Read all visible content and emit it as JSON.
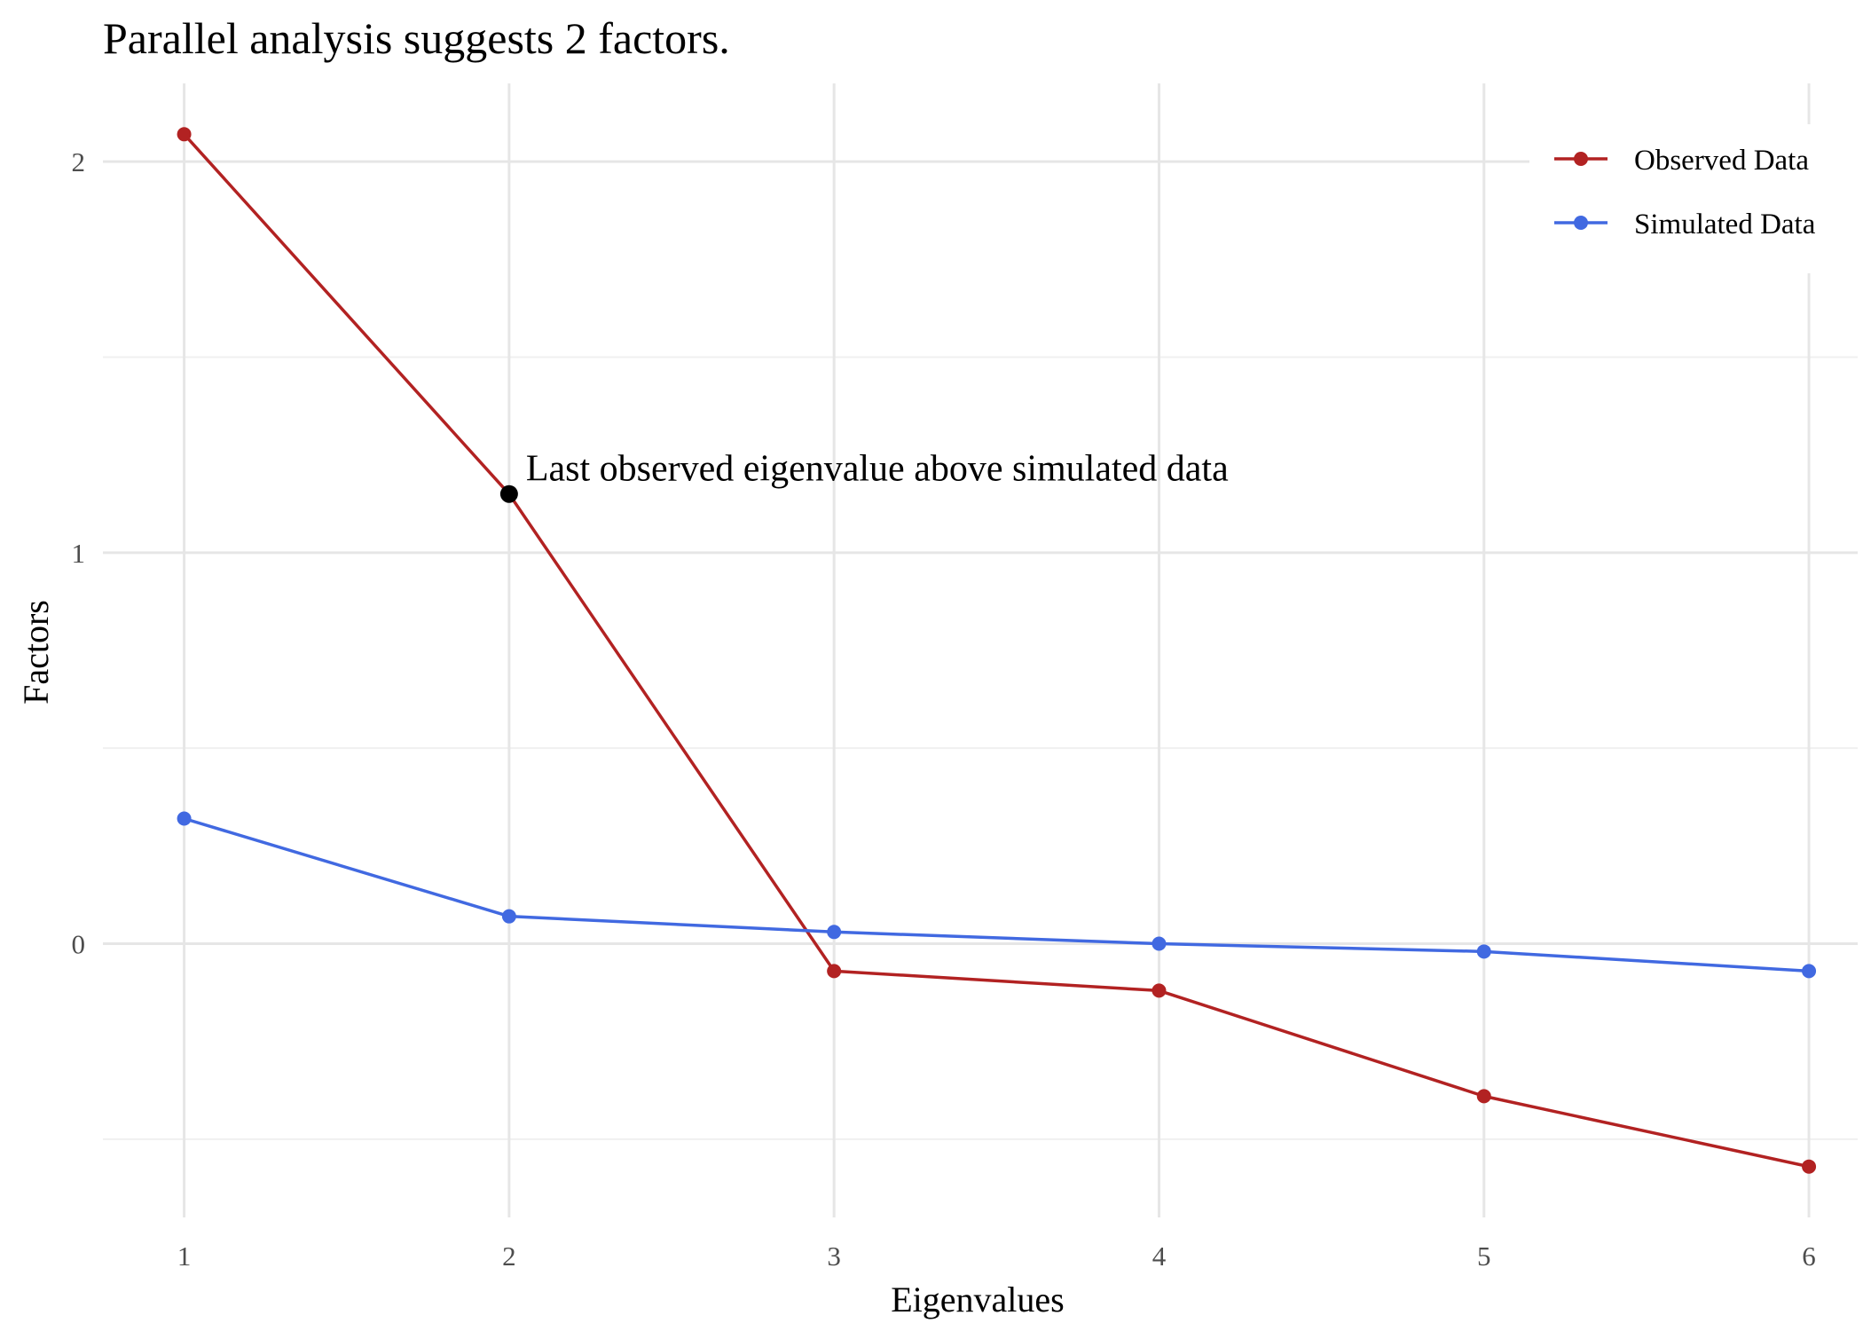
{
  "chart_data": {
    "type": "line",
    "title": "Parallel analysis suggests 2 factors.",
    "xlabel": "Eigenvalues",
    "ylabel": "Factors",
    "x": [
      1,
      2,
      3,
      4,
      5,
      6
    ],
    "xticks": [
      1,
      2,
      3,
      4,
      5,
      6
    ],
    "yticks": [
      0,
      1,
      2
    ],
    "xlim": [
      0.75,
      6.15
    ],
    "ylim": [
      -0.7,
      2.2
    ],
    "grid": true,
    "legend_position": "top-right",
    "series": [
      {
        "name": "Observed Data",
        "color": "#b22222",
        "values": [
          2.07,
          1.15,
          -0.07,
          -0.12,
          -0.39,
          -0.57
        ]
      },
      {
        "name": "Simulated Data",
        "color": "#4169e1",
        "values": [
          0.32,
          0.07,
          0.03,
          0.0,
          -0.02,
          -0.07
        ]
      }
    ],
    "annotation": {
      "text": "Last observed eigenvalue above simulated data",
      "x": 2,
      "y": 1.15
    }
  }
}
